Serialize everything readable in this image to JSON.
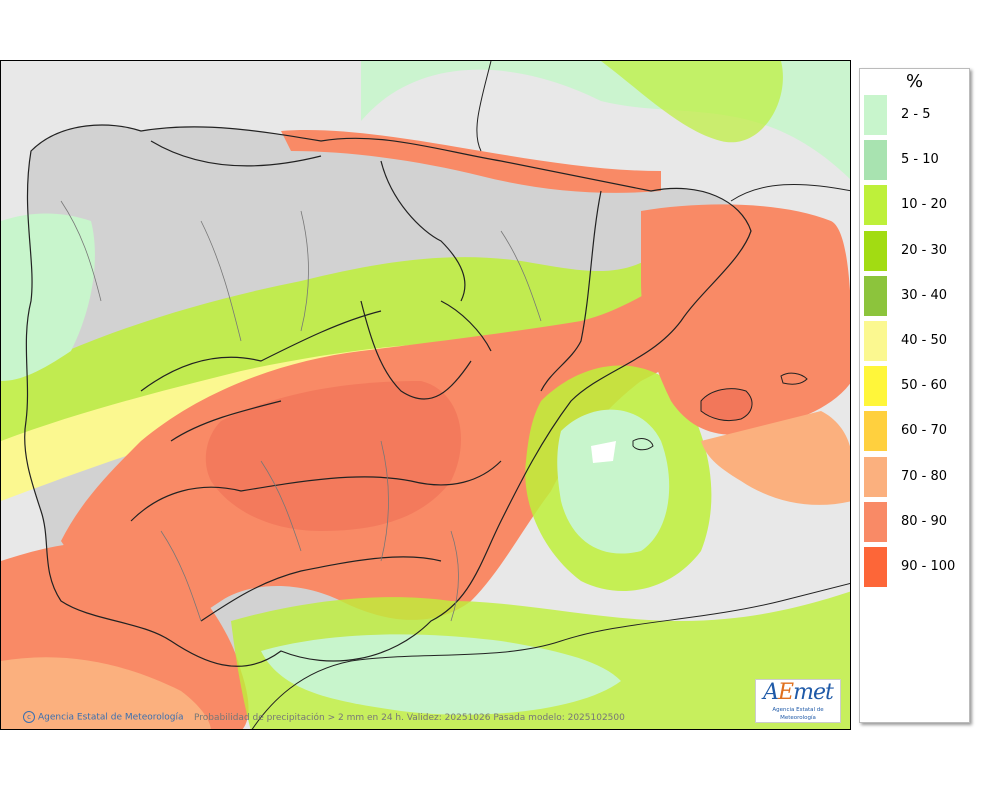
{
  "map": {
    "caption": "Probabilidad de precipitación > 2 mm en 24 h. Validez: 20251026 Pasada modelo: 2025102500",
    "credit": "Agencia Estatal de Meteorología",
    "copyright_symbol": "c",
    "logo": {
      "main_a": "A",
      "main_e": "E",
      "main_rest": "met",
      "subtitle": "Agencia Estatal de Meteorología"
    }
  },
  "legend": {
    "title": "%",
    "items": [
      {
        "label": "2 - 5",
        "color": "#c8f5cc"
      },
      {
        "label": "5 - 10",
        "color": "#a8e3b0"
      },
      {
        "label": "10 - 20",
        "color": "#bef03a"
      },
      {
        "label": "20 - 30",
        "color": "#a2dc12"
      },
      {
        "label": "30 - 40",
        "color": "#8cc43c"
      },
      {
        "label": "40 - 50",
        "color": "#fbf890"
      },
      {
        "label": "50 - 60",
        "color": "#fff63a"
      },
      {
        "label": "60 - 70",
        "color": "#ffd03e"
      },
      {
        "label": "70 - 80",
        "color": "#fbb07e"
      },
      {
        "label": "80 - 90",
        "color": "#f98a66"
      },
      {
        "label": "90 - 100",
        "color": "#fd6638"
      }
    ]
  }
}
